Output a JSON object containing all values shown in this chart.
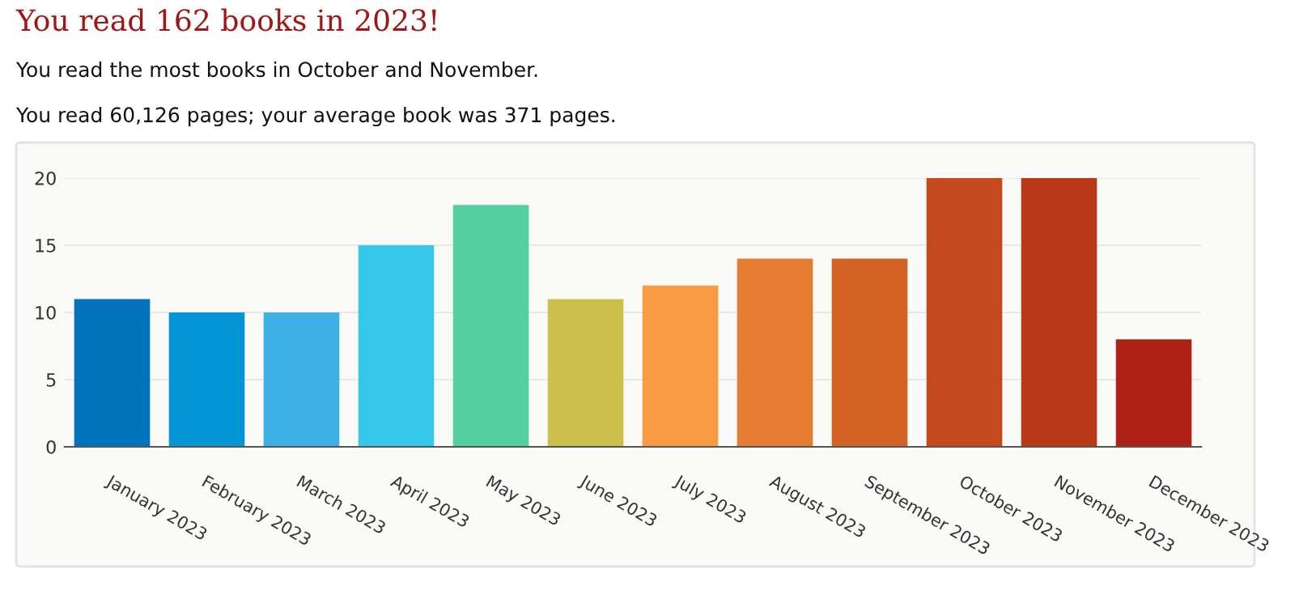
{
  "chart_data": {
    "type": "bar",
    "title": "You read 162 books in 2023!",
    "subtitle": "You read the most books in October and November.",
    "annotations": [
      "You read 60,126 pages; your average book was 371 pages."
    ],
    "categories": [
      "January 2023",
      "February 2023",
      "March 2023",
      "April 2023",
      "May 2023",
      "June 2023",
      "July 2023",
      "August 2023",
      "September 2023",
      "October 2023",
      "November 2023",
      "December 2023"
    ],
    "values": [
      11,
      10,
      10,
      15,
      18,
      11,
      12,
      14,
      14,
      20,
      20,
      8
    ],
    "colors": [
      "#0173bc",
      "#0495d6",
      "#3db0e5",
      "#36c8ea",
      "#52d0a0",
      "#cdbf4b",
      "#f89b42",
      "#e67c30",
      "#d46224",
      "#c4491c",
      "#b93817",
      "#ae2115"
    ],
    "ylim": [
      0,
      20
    ],
    "yticks": [
      0,
      5,
      10,
      15,
      20
    ],
    "grid": "y"
  }
}
